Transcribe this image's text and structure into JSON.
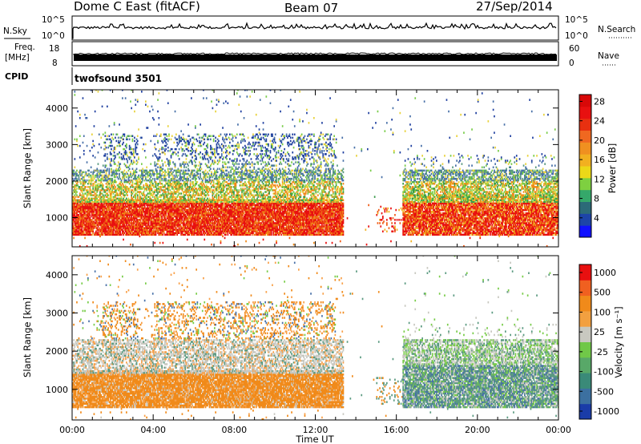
{
  "header": {
    "station": "Dome C East (fitACF)",
    "beam": "Beam 07",
    "date": "27/Sep/2014"
  },
  "panels": {
    "nsky": {
      "label": "N.Sky",
      "tick_top": "10^5",
      "tick_bottom": "10^0",
      "right_label": "N.Search",
      "right_tick_top": "10^5",
      "right_tick_bottom": "10^0"
    },
    "freq": {
      "label_line1": "Freq.",
      "label_line2": "[MHz]",
      "tick_top": "18",
      "tick_bottom": "8",
      "right_label": "Nave",
      "right_tick_top": "60",
      "right_tick_bottom": "0"
    },
    "cpid": {
      "label": "CPID",
      "program": "twofsound 3501"
    }
  },
  "colors": {
    "red": "#e81010",
    "orange_red": "#f05a14",
    "orange": "#f08a1a",
    "amber": "#f2b020",
    "yellow": "#e8d23a",
    "light_green": "#78cc48",
    "green": "#3a9a4a",
    "gray_green": "#5a9a80",
    "steel": "#4870a8",
    "blue": "#2040a0",
    "gray": "#c8c8c0",
    "light_orange": "#f8a048"
  },
  "chart_data": [
    {
      "type": "heatmap",
      "name": "power",
      "ylabel": "Slant Range [km]",
      "xlabel": "",
      "x_ticks": [
        "00:00",
        "04:00",
        "08:00",
        "12:00",
        "16:00",
        "20:00",
        "00:00"
      ],
      "y_ticks": [
        1000,
        2000,
        3000,
        4000
      ],
      "x_range_hours": [
        0,
        24
      ],
      "y_range_km": [
        200,
        4500
      ],
      "colorbar": {
        "label": "Power [dB]",
        "ticks": [
          "4",
          "8",
          "12",
          "16",
          "20",
          "24",
          "28"
        ],
        "colors": [
          "#1010ff",
          "#1d44a8",
          "#2c6a78",
          "#35a86a",
          "#7ed040",
          "#ecd818",
          "#f2b020",
          "#f09020",
          "#f06820",
          "#e83010",
          "#e81010",
          "#d80808"
        ]
      },
      "data_gap_hours": [
        13.4,
        16.3
      ]
    },
    {
      "type": "heatmap",
      "name": "velocity",
      "ylabel": "Slant Range [km]",
      "xlabel": "Time UT",
      "x_ticks": [
        "00:00",
        "04:00",
        "08:00",
        "12:00",
        "16:00",
        "20:00",
        "00:00"
      ],
      "y_ticks": [
        1000,
        2000,
        3000,
        4000
      ],
      "x_range_hours": [
        0,
        24
      ],
      "y_range_km": [
        200,
        4500
      ],
      "colorbar": {
        "label": "Velocity [m s⁻¹]",
        "ticks": [
          "1000",
          "500",
          "100",
          "25",
          "-25",
          "-100",
          "-500",
          "-1000"
        ],
        "colors": [
          "#1a3ca8",
          "#3c70a0",
          "#3a8a78",
          "#58a868",
          "#70c848",
          "#c8c8c0",
          "#f2a040",
          "#f08a1a",
          "#f06020",
          "#e81010"
        ]
      },
      "data_gap_hours": [
        13.4,
        16.3
      ]
    }
  ]
}
